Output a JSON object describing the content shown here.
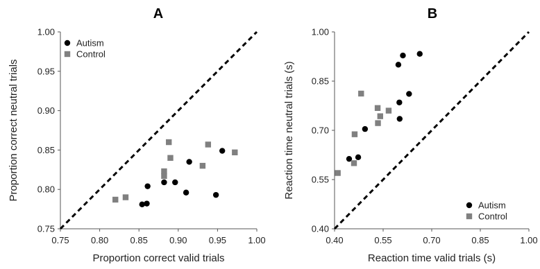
{
  "chart_data": [
    {
      "type": "scatter",
      "title": "A",
      "xlabel": "Proportion correct valid trials",
      "ylabel": "Proportion correct neutral trials",
      "xlim": [
        0.75,
        1.0
      ],
      "ylim": [
        0.75,
        1.0
      ],
      "xticks": [
        "0.75",
        "0.80",
        "0.85",
        "0.90",
        "0.95",
        "1.00"
      ],
      "yticks": [
        "0.75",
        "0.80",
        "0.85",
        "0.90",
        "0.95",
        "1.00"
      ],
      "grid": false,
      "legend_position": "top-left",
      "identity_line": true,
      "series": [
        {
          "name": "Autism",
          "marker": "circle",
          "color": "#000000",
          "points": [
            [
              0.854,
              0.781
            ],
            [
              0.86,
              0.782
            ],
            [
              0.861,
              0.804
            ],
            [
              0.882,
              0.809
            ],
            [
              0.896,
              0.809
            ],
            [
              0.91,
              0.796
            ],
            [
              0.914,
              0.835
            ],
            [
              0.948,
              0.793
            ],
            [
              0.956,
              0.849
            ]
          ]
        },
        {
          "name": "Control",
          "marker": "square",
          "color": "#808080",
          "points": [
            [
              0.82,
              0.787
            ],
            [
              0.833,
              0.79
            ],
            [
              0.882,
              0.817
            ],
            [
              0.882,
              0.823
            ],
            [
              0.888,
              0.86
            ],
            [
              0.89,
              0.84
            ],
            [
              0.931,
              0.83
            ],
            [
              0.938,
              0.857
            ],
            [
              0.972,
              0.847
            ]
          ]
        }
      ]
    },
    {
      "type": "scatter",
      "title": "B",
      "xlabel": "Reaction time valid trials (s)",
      "ylabel": "Reaction time neutral trials (s)",
      "xlim": [
        0.4,
        1.0
      ],
      "ylim": [
        0.4,
        1.0
      ],
      "xticks": [
        "0.40",
        "0.55",
        "0.70",
        "0.85",
        "1.00"
      ],
      "yticks": [
        "0.40",
        "0.55",
        "0.70",
        "0.85",
        "1.00"
      ],
      "grid": false,
      "legend_position": "bottom-right",
      "identity_line": true,
      "series": [
        {
          "name": "Autism",
          "marker": "circle",
          "color": "#000000",
          "points": [
            [
              0.445,
              0.613
            ],
            [
              0.473,
              0.618
            ],
            [
              0.494,
              0.704
            ],
            [
              0.597,
              0.9
            ],
            [
              0.611,
              0.928
            ],
            [
              0.663,
              0.933
            ],
            [
              0.6,
              0.785
            ],
            [
              0.63,
              0.811
            ],
            [
              0.601,
              0.735
            ]
          ]
        },
        {
          "name": "Control",
          "marker": "square",
          "color": "#808080",
          "points": [
            [
              0.41,
              0.57
            ],
            [
              0.46,
              0.6
            ],
            [
              0.462,
              0.688
            ],
            [
              0.482,
              0.812
            ],
            [
              0.533,
              0.768
            ],
            [
              0.534,
              0.722
            ],
            [
              0.541,
              0.743
            ],
            [
              0.567,
              0.76
            ]
          ]
        }
      ]
    }
  ]
}
